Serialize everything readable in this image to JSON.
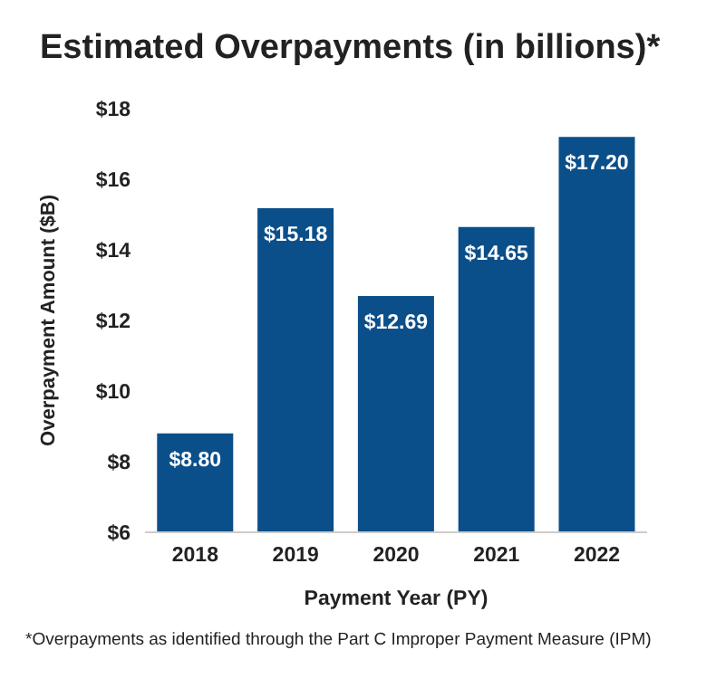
{
  "chart_data": {
    "type": "bar",
    "title": "Estimated Overpayments (in billions)*",
    "xlabel": "Payment Year (PY)",
    "ylabel": "Overpayment Amount ($B)",
    "categories": [
      "2018",
      "2019",
      "2020",
      "2021",
      "2022"
    ],
    "values": [
      8.8,
      15.18,
      12.69,
      14.65,
      17.2
    ],
    "value_labels": [
      "$8.80",
      "$15.18",
      "$12.69",
      "$14.65",
      "$17.20"
    ],
    "color": "#0b4f8a",
    "ylim": [
      6,
      18
    ],
    "yticks": [
      {
        "value": 6,
        "label": "$6"
      },
      {
        "value": 8,
        "label": "$8"
      },
      {
        "value": 10,
        "label": "$10"
      },
      {
        "value": 12,
        "label": "$12"
      },
      {
        "value": 14,
        "label": "$14"
      },
      {
        "value": 16,
        "label": "$16"
      },
      {
        "value": 18,
        "label": "$18"
      }
    ],
    "grid": false,
    "legend": false,
    "annotations": [
      "*Overpayments as identified through the Part C Improper Payment Measure (IPM)"
    ]
  }
}
